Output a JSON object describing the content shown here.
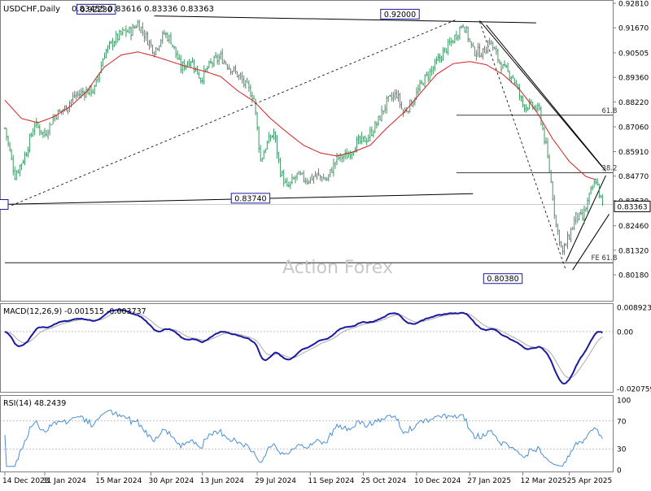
{
  "header": {
    "symbol": "USDCHF,Daily",
    "ohlc": "0.83455 0.83616 0.83336 0.83363"
  },
  "watermark": "Action Forex",
  "chart_data": [
    {
      "type": "candlestick",
      "name": "price",
      "last_price": "0.83363",
      "y_ticks": [
        "0.92810",
        "0.91670",
        "0.90505",
        "0.89360",
        "0.88220",
        "0.87060",
        "0.85910",
        "0.84770",
        "0.83630",
        "0.82460",
        "0.81320",
        "0.80180"
      ],
      "x_ticks": [
        "14 Dec 2023",
        "31 Jan 2024",
        "15 Mar 2024",
        "30 Apr 2024",
        "13 Jun 2024",
        "29 Jul 2024",
        "11 Sep 2024",
        "25 Oct 2024",
        "10 Dec 2024",
        "27 Jan 2025",
        "12 Mar 2025",
        "25 Apr 2025"
      ],
      "x_tick_keys": [
        0,
        24,
        56,
        88,
        119,
        152,
        184,
        216,
        248,
        280,
        312,
        340
      ],
      "moving_average": [
        [
          0,
          0.883
        ],
        [
          10,
          0.8745
        ],
        [
          20,
          0.8725
        ],
        [
          30,
          0.8755
        ],
        [
          40,
          0.8805
        ],
        [
          50,
          0.8875
        ],
        [
          55,
          0.8935
        ],
        [
          60,
          0.8985
        ],
        [
          70,
          0.904
        ],
        [
          80,
          0.9055
        ],
        [
          90,
          0.9035
        ],
        [
          100,
          0.901
        ],
        [
          110,
          0.8985
        ],
        [
          120,
          0.8965
        ],
        [
          130,
          0.894
        ],
        [
          140,
          0.8875
        ],
        [
          150,
          0.8825
        ],
        [
          160,
          0.8745
        ],
        [
          170,
          0.868
        ],
        [
          180,
          0.862
        ],
        [
          190,
          0.8585
        ],
        [
          200,
          0.857
        ],
        [
          210,
          0.859
        ],
        [
          220,
          0.862
        ],
        [
          230,
          0.87
        ],
        [
          240,
          0.877
        ],
        [
          250,
          0.886
        ],
        [
          260,
          0.895
        ],
        [
          270,
          0.9
        ],
        [
          280,
          0.901
        ],
        [
          290,
          0.8995
        ],
        [
          300,
          0.895
        ],
        [
          310,
          0.888
        ],
        [
          320,
          0.878
        ],
        [
          330,
          0.865
        ],
        [
          340,
          0.8545
        ],
        [
          350,
          0.8475
        ],
        [
          356,
          0.846
        ]
      ],
      "close_path": [
        [
          0,
          0.87
        ],
        [
          6,
          0.848
        ],
        [
          12,
          0.857
        ],
        [
          18,
          0.872
        ],
        [
          24,
          0.867
        ],
        [
          30,
          0.876
        ],
        [
          36,
          0.879
        ],
        [
          42,
          0.885
        ],
        [
          48,
          0.887
        ],
        [
          54,
          0.888
        ],
        [
          60,
          0.905
        ],
        [
          66,
          0.911
        ],
        [
          72,
          0.915
        ],
        [
          76,
          0.915
        ],
        [
          80,
          0.919
        ],
        [
          86,
          0.911
        ],
        [
          90,
          0.906
        ],
        [
          96,
          0.914
        ],
        [
          100,
          0.911
        ],
        [
          106,
          0.898
        ],
        [
          112,
          0.902
        ],
        [
          118,
          0.893
        ],
        [
          124,
          0.9
        ],
        [
          130,
          0.903
        ],
        [
          136,
          0.898
        ],
        [
          140,
          0.895
        ],
        [
          146,
          0.889
        ],
        [
          150,
          0.884
        ],
        [
          154,
          0.855
        ],
        [
          158,
          0.863
        ],
        [
          162,
          0.868
        ],
        [
          166,
          0.85
        ],
        [
          170,
          0.842
        ],
        [
          176,
          0.848
        ],
        [
          182,
          0.846
        ],
        [
          188,
          0.848
        ],
        [
          194,
          0.846
        ],
        [
          200,
          0.856
        ],
        [
          206,
          0.857
        ],
        [
          212,
          0.863
        ],
        [
          218,
          0.865
        ],
        [
          224,
          0.872
        ],
        [
          230,
          0.882
        ],
        [
          236,
          0.886
        ],
        [
          240,
          0.877
        ],
        [
          246,
          0.883
        ],
        [
          252,
          0.892
        ],
        [
          258,
          0.898
        ],
        [
          264,
          0.905
        ],
        [
          270,
          0.911
        ],
        [
          276,
          0.919
        ],
        [
          282,
          0.906
        ],
        [
          288,
          0.905
        ],
        [
          292,
          0.911
        ],
        [
          296,
          0.904
        ],
        [
          300,
          0.898
        ],
        [
          306,
          0.894
        ],
        [
          312,
          0.881
        ],
        [
          318,
          0.88
        ],
        [
          322,
          0.878
        ],
        [
          326,
          0.861
        ],
        [
          329,
          0.845
        ],
        [
          332,
          0.825
        ],
        [
          336,
          0.812
        ],
        [
          340,
          0.82
        ],
        [
          344,
          0.829
        ],
        [
          348,
          0.828
        ],
        [
          352,
          0.838
        ],
        [
          356,
          0.846
        ],
        [
          360,
          0.8336
        ]
      ],
      "labels": [
        {
          "text": "0.92230",
          "x": 55,
          "y": 0.9223
        },
        {
          "text": "0.92000",
          "x": 238,
          "y": 0.92
        },
        {
          "text": "0.83740",
          "x": 148,
          "y": 0.8374
        },
        {
          "text": "0.80380",
          "x": 300,
          "y": 0.8038
        },
        {
          "text": "61.8",
          "x": 343,
          "y": 0.876
        },
        {
          "text": "38.2",
          "x": 348,
          "y": 0.8493
        },
        {
          "text": "FE 61.8",
          "x": 335,
          "y": 0.8074
        }
      ],
      "levels": [
        0.876,
        0.8493,
        0.8345,
        0.8074
      ]
    },
    {
      "type": "line",
      "name": "MACD",
      "label": "MACD(12,26,9) -0.001515 -0.003737",
      "y_ticks": [
        "0.008923",
        "0.00",
        "-0.020759"
      ],
      "zero": 0.0
    },
    {
      "type": "line",
      "name": "RSI",
      "label": "RSI(14) 48.2439",
      "y_ticks": [
        "100",
        "70",
        "30",
        "0"
      ],
      "levels": [
        70,
        30
      ]
    }
  ],
  "colors": {
    "candle": "#2e8b57",
    "ma": "#d42020",
    "trend": "#000000",
    "macd": "#1a1aa0",
    "signal": "#aaaaaa",
    "rsi": "#4a8fd6",
    "label_border": "#1a1aa0"
  }
}
